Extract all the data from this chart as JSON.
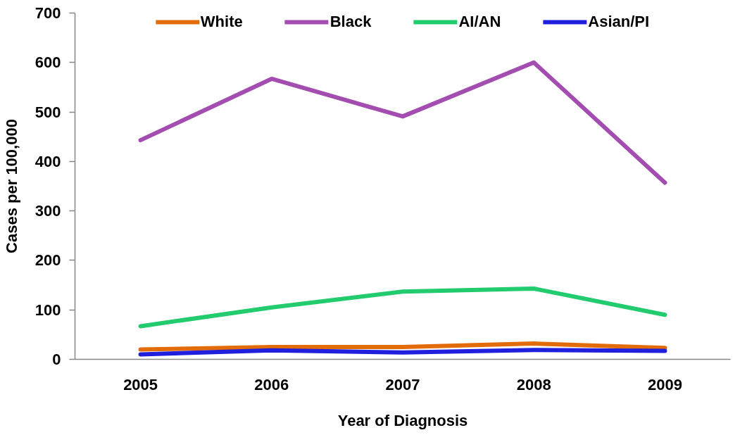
{
  "chart_data": {
    "type": "line",
    "xlabel": "Year of Diagnosis",
    "ylabel": "Cases per 100,000",
    "categories": [
      "2005",
      "2006",
      "2007",
      "2008",
      "2009"
    ],
    "series": [
      {
        "name": "White",
        "color": "#e36c0a",
        "values": [
          20,
          25,
          25,
          32,
          23
        ]
      },
      {
        "name": "Black",
        "color": "#a34db0",
        "values": [
          443,
          567,
          491,
          600,
          357
        ]
      },
      {
        "name": "AI/AN",
        "color": "#22cc6e",
        "values": [
          67,
          105,
          137,
          143,
          90
        ]
      },
      {
        "name": "Asian/PI",
        "color": "#1f1fdd",
        "values": [
          10,
          18,
          14,
          19,
          17
        ]
      }
    ],
    "ylim": [
      0,
      700
    ],
    "yticks": [
      0,
      100,
      200,
      300,
      400,
      500,
      600,
      700
    ],
    "grid": false,
    "legend": "top"
  }
}
